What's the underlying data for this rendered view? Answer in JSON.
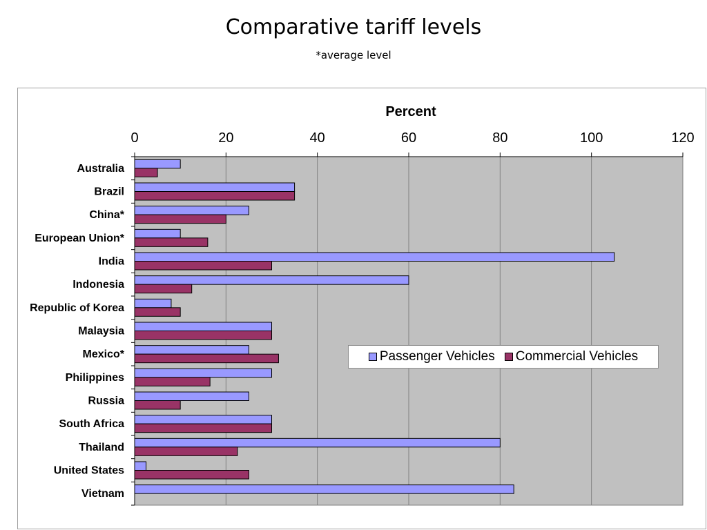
{
  "slide": {
    "title": "Comparative tariff levels",
    "subtitle": "*average level"
  },
  "colors": {
    "passenger": "#9999ff",
    "commercial": "#993366",
    "plot_bg": "#c0c0c0",
    "grid": "#808080"
  },
  "chart_data": {
    "type": "bar",
    "orientation": "horizontal",
    "xlabel": "Percent",
    "xlim": [
      0,
      120
    ],
    "xticks": [
      0,
      20,
      40,
      60,
      80,
      100,
      120
    ],
    "x_axis_position": "top",
    "grid": true,
    "legend_placement": "right-center",
    "categories": [
      "Australia",
      "Brazil",
      "China*",
      "European Union*",
      "India",
      "Indonesia",
      "Republic of Korea",
      "Malaysia",
      "Mexico*",
      "Philippines",
      "Russia",
      "South Africa",
      "Thailand",
      "United States",
      "Vietnam"
    ],
    "series": [
      {
        "name": "Passenger Vehicles",
        "values": [
          10,
          35,
          25,
          10,
          105,
          60,
          8,
          30,
          25,
          30,
          25,
          30,
          80,
          2.5,
          83
        ]
      },
      {
        "name": "Commercial Vehicles",
        "values": [
          5,
          35,
          20,
          16,
          30,
          12.5,
          10,
          30,
          31.5,
          16.5,
          10,
          30,
          22.5,
          25,
          0
        ]
      }
    ]
  }
}
